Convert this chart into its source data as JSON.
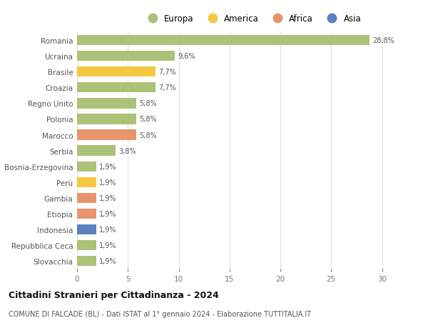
{
  "countries": [
    "Romania",
    "Ucraina",
    "Brasile",
    "Croazia",
    "Regno Unito",
    "Polonia",
    "Marocco",
    "Serbia",
    "Bosnia-Erzegovina",
    "Perù",
    "Gambia",
    "Etiopia",
    "Indonesia",
    "Repubblica Ceca",
    "Slovacchia"
  ],
  "values": [
    28.8,
    9.6,
    7.7,
    7.7,
    5.8,
    5.8,
    5.8,
    3.8,
    1.9,
    1.9,
    1.9,
    1.9,
    1.9,
    1.9,
    1.9
  ],
  "labels": [
    "28,8%",
    "9,6%",
    "7,7%",
    "7,7%",
    "5,8%",
    "5,8%",
    "5,8%",
    "3,8%",
    "1,9%",
    "1,9%",
    "1,9%",
    "1,9%",
    "1,9%",
    "1,9%",
    "1,9%"
  ],
  "continents": [
    "Europa",
    "Europa",
    "America",
    "Europa",
    "Europa",
    "Europa",
    "Africa",
    "Europa",
    "Europa",
    "America",
    "Africa",
    "Africa",
    "Asia",
    "Europa",
    "Europa"
  ],
  "colors": {
    "Europa": "#adc178",
    "America": "#f5c842",
    "Africa": "#e8956d",
    "Asia": "#5b7fc1"
  },
  "legend_order": [
    "Europa",
    "America",
    "Africa",
    "Asia"
  ],
  "title": "Cittadini Stranieri per Cittadinanza - 2024",
  "subtitle": "COMUNE DI FALCADE (BL) - Dati ISTAT al 1° gennaio 2024 - Elaborazione TUTTITALIA.IT",
  "xlim": [
    0,
    32
  ],
  "xticks": [
    0,
    5,
    10,
    15,
    20,
    25,
    30
  ],
  "background_color": "#ffffff",
  "grid_color": "#e0e0e0"
}
